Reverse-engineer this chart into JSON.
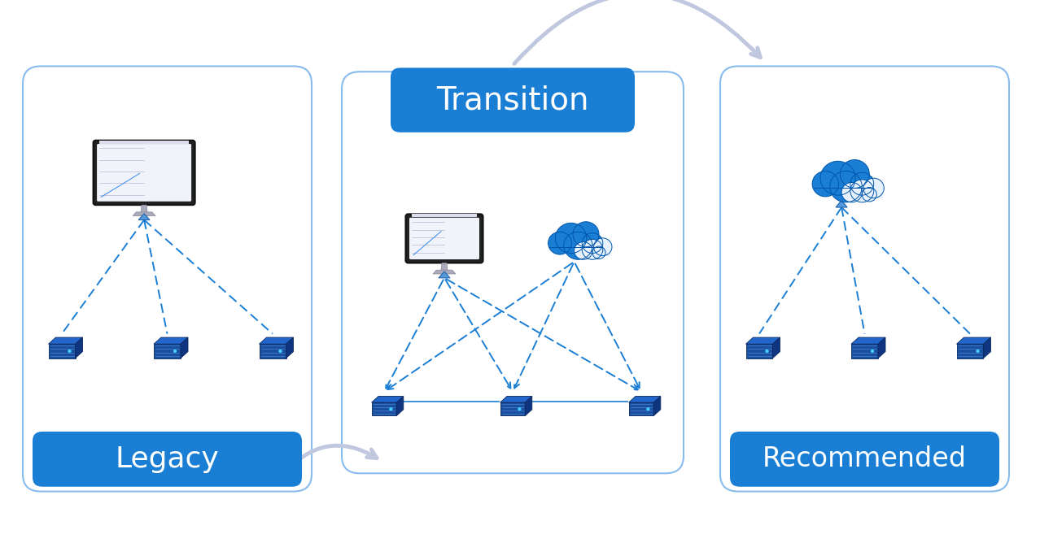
{
  "background_color": "#ffffff",
  "box_color": "#1a7fd4",
  "box_text_color": "#ffffff",
  "arrow_color": "#c0c8e0",
  "dashed_color": "#1a7fd4",
  "panel_edge_color": "#88bbee",
  "panel_bg_color": "#ffffff",
  "legacy_label": "Legacy",
  "transition_label": "Transition",
  "recommended_label": "Recommended",
  "server_front": "#1a4fa0",
  "server_top": "#2266cc",
  "server_right": "#0f3580",
  "server_line": "#4488cc",
  "monitor_frame": "#222222",
  "monitor_stand": "#999aaa",
  "monitor_screen_bg": "#f0f4fa",
  "cloud_main": "#1a7fd4",
  "cloud_secondary": "#e8f2ff"
}
